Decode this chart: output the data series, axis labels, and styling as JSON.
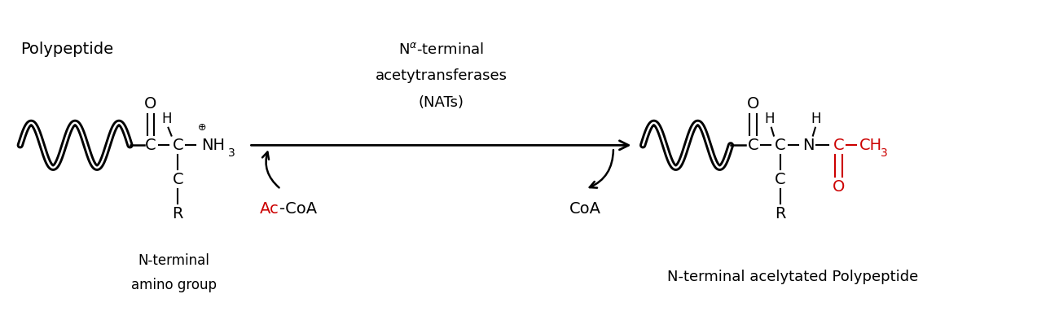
{
  "bg_color": "#ffffff",
  "black": "#000000",
  "red": "#cc0000",
  "figsize": [
    13.0,
    3.88
  ],
  "dpi": 100,
  "xlim": [
    0,
    13
  ],
  "ylim": [
    0,
    3.88
  ]
}
